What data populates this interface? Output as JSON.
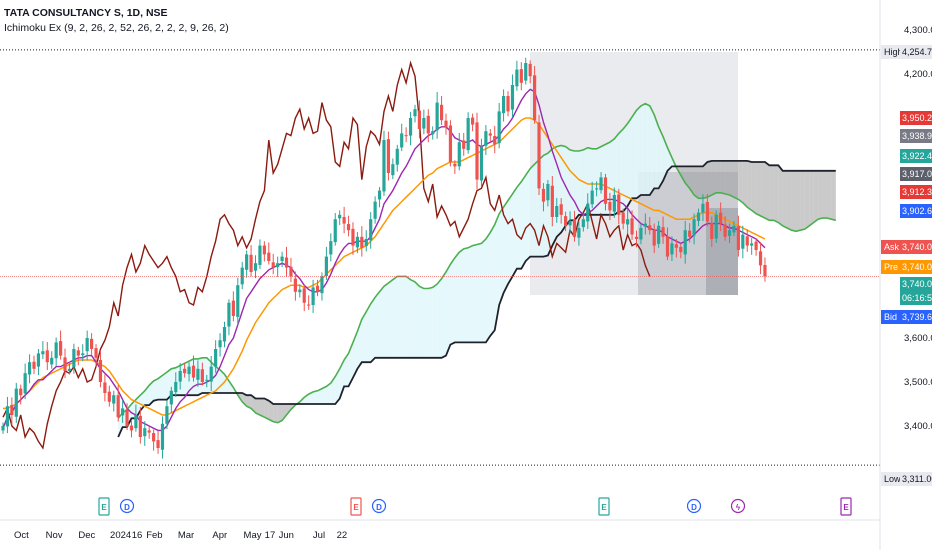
{
  "header": {
    "symbol": "TATA CONSULTANCY S, 1D, NSE",
    "indicator": "Ichimoku Ex (9, 2, 26, 2, 52, 26, 2, 2, 2, 9, 26, 2)"
  },
  "colors": {
    "up_candle": "#26a69a",
    "down_candle": "#ef5350",
    "conversion_line": "#9c27b0",
    "base_line": "#ff9800",
    "lagging_span": "#8b1a0f",
    "leading_span_a": "#4caf50",
    "leading_span_b": "#1e222d",
    "cloud_bull_fill": "#e0f7fa",
    "cloud_bear_fill": "#9e9e9e",
    "axis_text": "#131722",
    "grid": "#e0e3eb"
  },
  "chart_data": {
    "type": "candlestick",
    "title": "TATA CONSULTANCY S, 1D, NSE",
    "ylim": [
      3300,
      4300
    ],
    "yticks": [
      "4,300.00",
      "4,200.00",
      "3,600.00",
      "3,500.00",
      "3,400.00"
    ],
    "x_tick_labels": [
      "Oct",
      "Nov",
      "Dec",
      "2024",
      "16",
      "Feb",
      "Mar",
      "Apr",
      "May",
      "17",
      "Jun",
      "Jul",
      "22"
    ],
    "x_tick_dates": [
      "2023-10-02",
      "2023-11-01",
      "2023-12-01",
      "2024-01-01",
      "2024-01-16",
      "2024-02-01",
      "2024-03-01",
      "2024-04-01",
      "2024-05-01",
      "2024-05-17",
      "2024-06-01",
      "2024-07-01",
      "2024-07-22"
    ],
    "price_labels": [
      {
        "tag": "High",
        "value": "4,254.75"
      },
      {
        "tag": "",
        "value": "3,950.20"
      },
      {
        "tag": "",
        "value": "3,938.95"
      },
      {
        "tag": "",
        "value": "3,922.45"
      },
      {
        "tag": "",
        "value": "3,917.00"
      },
      {
        "tag": "",
        "value": "3,912.30"
      },
      {
        "tag": "",
        "value": "3,902.65"
      },
      {
        "tag": "Ask",
        "value": "3,740.00"
      },
      {
        "tag": "Pre",
        "value": "3,740.00"
      },
      {
        "tag": "",
        "value": "3,740.00"
      },
      {
        "tag": "",
        "value": "06:16:50"
      },
      {
        "tag": "Bid",
        "value": "3,739.65"
      },
      {
        "tag": "Low",
        "value": "3,311.00"
      }
    ],
    "high": 4254.75,
    "low": 3311.0,
    "last_price": 3740.0,
    "close_series": [
      3400,
      3445,
      3425,
      3485,
      3470,
      3520,
      3545,
      3530,
      3565,
      3570,
      3545,
      3555,
      3590,
      3560,
      3525,
      3530,
      3575,
      3560,
      3565,
      3600,
      3575,
      3555,
      3500,
      3475,
      3455,
      3470,
      3420,
      3440,
      3400,
      3390,
      3425,
      3375,
      3395,
      3385,
      3365,
      3350,
      3405,
      3445,
      3480,
      3500,
      3525,
      3520,
      3535,
      3510,
      3530,
      3500,
      3505,
      3535,
      3575,
      3595,
      3625,
      3680,
      3650,
      3720,
      3760,
      3790,
      3750,
      3770,
      3810,
      3790,
      3775,
      3760,
      3770,
      3785,
      3760,
      3740,
      3705,
      3710,
      3680,
      3675,
      3715,
      3705,
      3740,
      3785,
      3820,
      3870,
      3880,
      3860,
      3845,
      3810,
      3830,
      3805,
      3825,
      3870,
      3910,
      3935,
      4050,
      3975,
      3995,
      4030,
      4065,
      4060,
      4100,
      4120,
      4075,
      4100,
      4065,
      4070,
      4135,
      4095,
      4080,
      4000,
      3990,
      4045,
      4030,
      4100,
      4085,
      3960,
      4035,
      4070,
      4060,
      4040,
      4115,
      4150,
      4115,
      4175,
      4210,
      4180,
      4225,
      4195,
      4095,
      3940,
      3910,
      3950,
      3875,
      3900,
      3880,
      3855,
      3865,
      3830,
      3850,
      3870,
      3905,
      3935,
      3940,
      3965,
      3905,
      3890,
      3925,
      3880,
      3860,
      3870,
      3835,
      3825,
      3850,
      3860,
      3845,
      3810,
      3855,
      3830,
      3785,
      3815,
      3805,
      3795,
      3845,
      3830,
      3870,
      3885,
      3905,
      3865,
      3825,
      3880,
      3860,
      3830,
      3845,
      3855,
      3800,
      3835,
      3810,
      3815,
      3800,
      3765,
      3740
    ],
    "tenkan": [
      3395,
      3420,
      3430,
      3450,
      3460,
      3470,
      3480,
      3495,
      3505,
      3505,
      3515,
      3525,
      3535,
      3535,
      3540,
      3545,
      3550,
      3555,
      3555,
      3560,
      3560,
      3545,
      3530,
      3520,
      3510,
      3495,
      3480,
      3460,
      3440,
      3430,
      3425,
      3410,
      3405,
      3400,
      3395,
      3390,
      3390,
      3400,
      3420,
      3440,
      3455,
      3465,
      3480,
      3490,
      3495,
      3495,
      3500,
      3505,
      3515,
      3535,
      3560,
      3585,
      3600,
      3630,
      3660,
      3690,
      3705,
      3720,
      3735,
      3745,
      3755,
      3760,
      3765,
      3770,
      3765,
      3760,
      3745,
      3735,
      3720,
      3710,
      3705,
      3705,
      3710,
      3725,
      3745,
      3770,
      3790,
      3805,
      3815,
      3815,
      3820,
      3820,
      3820,
      3830,
      3850,
      3870,
      3905,
      3920,
      3935,
      3955,
      3975,
      3990,
      4010,
      4030,
      4040,
      4050,
      4060,
      4065,
      4075,
      4080,
      4080,
      4070,
      4055,
      4050,
      4045,
      4045,
      4050,
      4040,
      4035,
      4040,
      4045,
      4050,
      4060,
      4075,
      4085,
      4100,
      4120,
      4140,
      4155,
      4165,
      4160,
      4130,
      4090,
      4060,
      4025,
      3995,
      3965,
      3945,
      3925,
      3910,
      3890,
      3880,
      3885,
      3890,
      3900,
      3910,
      3915,
      3915,
      3915,
      3910,
      3905,
      3895,
      3880,
      3870,
      3860,
      3855,
      3850,
      3845,
      3845,
      3840,
      3830,
      3825,
      3820,
      3815,
      3820,
      3825,
      3835,
      3845,
      3855,
      3860,
      3860,
      3860,
      3860,
      3855,
      3850,
      3850,
      3845,
      3840,
      3835,
      3830,
      3825,
      3815,
      3805
    ],
    "kijun": [
      3440,
      3440,
      3445,
      3450,
      3460,
      3470,
      3480,
      3490,
      3500,
      3510,
      3515,
      3520,
      3525,
      3530,
      3535,
      3540,
      3545,
      3550,
      3550,
      3550,
      3550,
      3545,
      3540,
      3535,
      3525,
      3510,
      3495,
      3480,
      3470,
      3460,
      3455,
      3450,
      3445,
      3440,
      3435,
      3430,
      3425,
      3425,
      3430,
      3435,
      3440,
      3445,
      3450,
      3455,
      3460,
      3465,
      3470,
      3475,
      3480,
      3490,
      3500,
      3515,
      3530,
      3550,
      3570,
      3595,
      3615,
      3635,
      3650,
      3665,
      3680,
      3690,
      3700,
      3710,
      3715,
      3720,
      3720,
      3720,
      3715,
      3715,
      3720,
      3725,
      3735,
      3745,
      3755,
      3765,
      3775,
      3785,
      3790,
      3795,
      3800,
      3805,
      3810,
      3820,
      3830,
      3845,
      3860,
      3875,
      3890,
      3900,
      3910,
      3920,
      3930,
      3940,
      3950,
      3960,
      3970,
      3975,
      3985,
      3990,
      3995,
      4000,
      4000,
      4000,
      4005,
      4010,
      4015,
      4020,
      4025,
      4030,
      4035,
      4040,
      4045,
      4055,
      4065,
      4075,
      4085,
      4095,
      4100,
      4100,
      4095,
      4085,
      4070,
      4055,
      4040,
      4025,
      4010,
      3995,
      3980,
      3970,
      3960,
      3955,
      3950,
      3950,
      3950,
      3950,
      3945,
      3940,
      3935,
      3930,
      3925,
      3920,
      3915,
      3910,
      3905,
      3900,
      3895,
      3890,
      3890,
      3885,
      3880,
      3875,
      3870,
      3870,
      3870,
      3870,
      3875,
      3880,
      3885,
      3885,
      3885,
      3880,
      3875,
      3870,
      3865,
      3860,
      3855,
      3850,
      3845,
      3840,
      3835,
      3830,
      3825
    ],
    "title_note": "",
    "xlabel": "",
    "ylabel": "",
    "grid": false
  }
}
